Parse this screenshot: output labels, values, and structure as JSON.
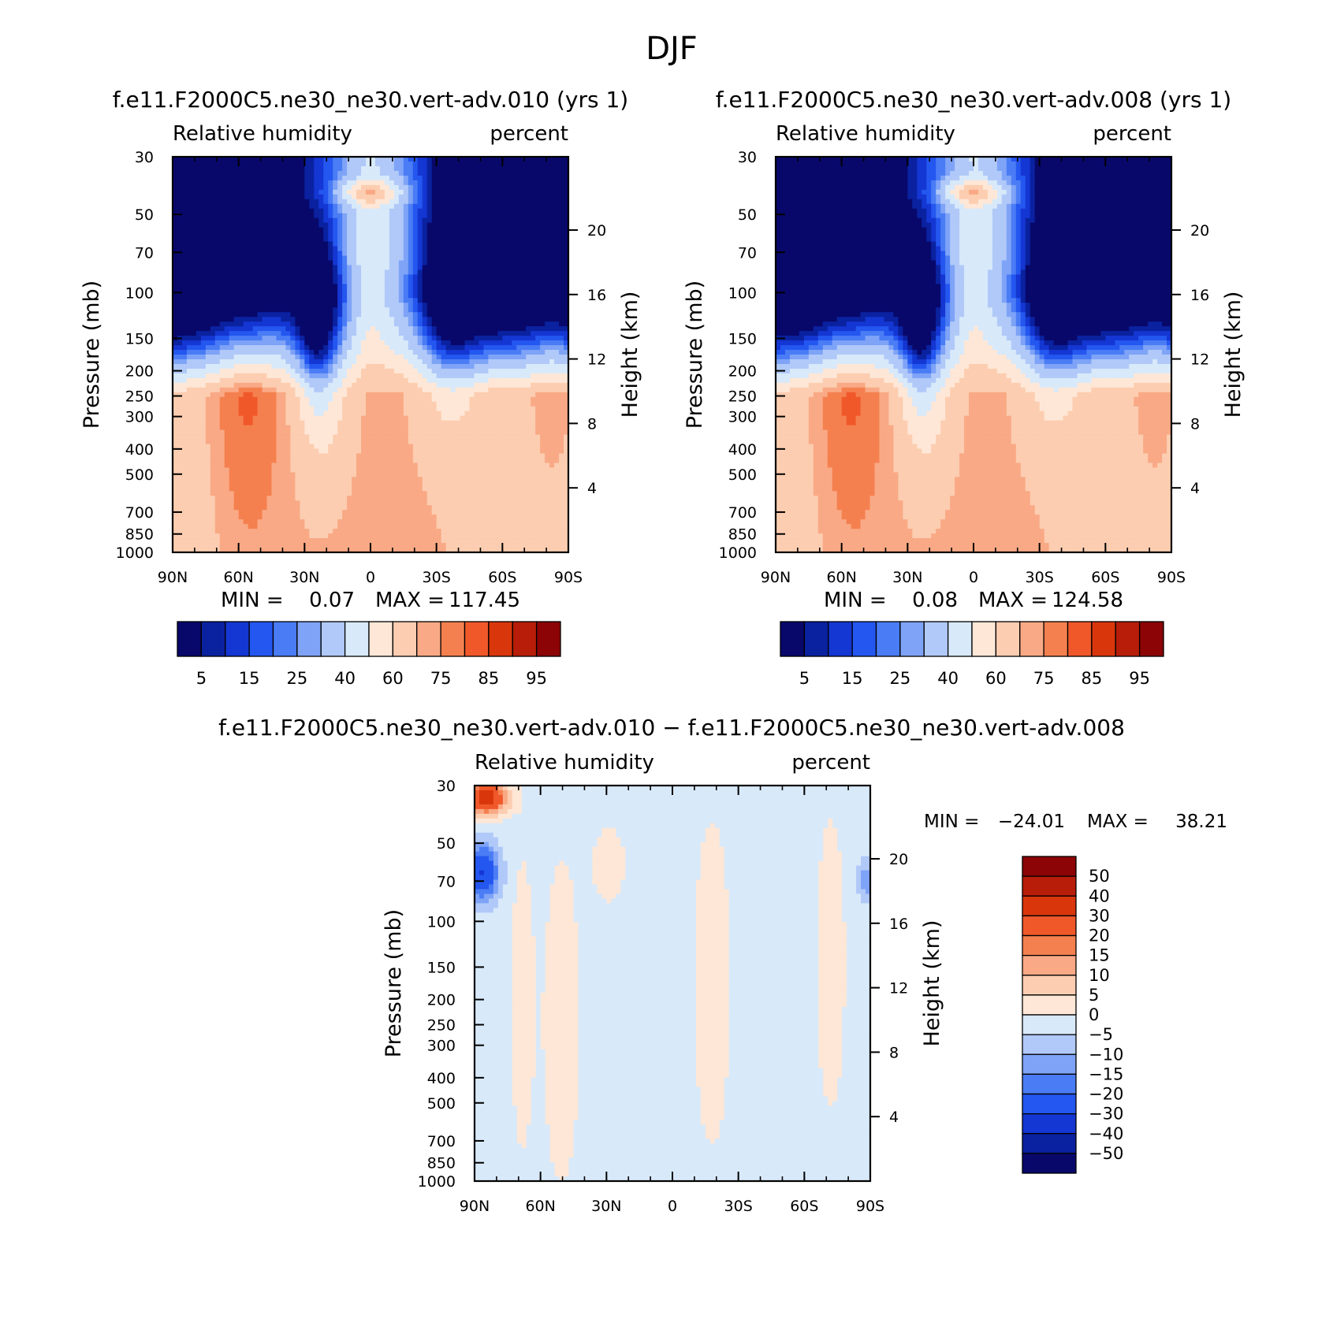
{
  "chart_data": {
    "type": "heatmap",
    "title": "DJF",
    "panels": [
      {
        "id": "case",
        "run_title": "f.e11.F2000C5.ne30_ne30.vert-adv.010 (yrs 1)",
        "left_label": "Relative humidity",
        "right_label": "percent",
        "xlabel": "",
        "ylabel": "Pressure (mb)",
        "ylabel_right": "Height (km)",
        "x_ticks": [
          "90N",
          "60N",
          "30N",
          "0",
          "30S",
          "60S",
          "90S"
        ],
        "y_ticks": [
          "30",
          "50",
          "70",
          "100",
          "150",
          "200",
          "250",
          "300",
          "400",
          "500",
          "700",
          "850",
          "1000"
        ],
        "height_ticks": [
          "20",
          "16",
          "12",
          "8",
          "4"
        ],
        "stats": {
          "min_label": "MIN =",
          "min_value": "0.07",
          "max_label": "MAX =",
          "max_value": "117.45"
        },
        "colorbar": {
          "orientation": "horizontal",
          "labels": [
            "5",
            "15",
            "25",
            "40",
            "60",
            "75",
            "85",
            "95"
          ]
        }
      },
      {
        "id": "control",
        "run_title": "f.e11.F2000C5.ne30_ne30.vert-adv.008 (yrs 1)",
        "left_label": "Relative humidity",
        "right_label": "percent",
        "xlabel": "",
        "ylabel": "Pressure (mb)",
        "ylabel_right": "Height (km)",
        "x_ticks": [
          "90N",
          "60N",
          "30N",
          "0",
          "30S",
          "60S",
          "90S"
        ],
        "y_ticks": [
          "30",
          "50",
          "70",
          "100",
          "150",
          "200",
          "250",
          "300",
          "400",
          "500",
          "700",
          "850",
          "1000"
        ],
        "height_ticks": [
          "20",
          "16",
          "12",
          "8",
          "4"
        ],
        "stats": {
          "min_label": "MIN =",
          "min_value": "0.08",
          "max_label": "MAX =",
          "max_value": "124.58"
        },
        "colorbar": {
          "orientation": "horizontal",
          "labels": [
            "5",
            "15",
            "25",
            "40",
            "60",
            "75",
            "85",
            "95"
          ]
        }
      },
      {
        "id": "difference",
        "run_title": "f.e11.F2000C5.ne30_ne30.vert-adv.010 − f.e11.F2000C5.ne30_ne30.vert-adv.008",
        "left_label": "Relative humidity",
        "right_label": "percent",
        "xlabel": "",
        "ylabel": "Pressure (mb)",
        "ylabel_right": "Height (km)",
        "x_ticks": [
          "90N",
          "60N",
          "30N",
          "0",
          "30S",
          "60S",
          "90S"
        ],
        "y_ticks": [
          "30",
          "50",
          "70",
          "100",
          "150",
          "200",
          "250",
          "300",
          "400",
          "500",
          "700",
          "850",
          "1000"
        ],
        "height_ticks": [
          "20",
          "16",
          "12",
          "8",
          "4"
        ],
        "stats": {
          "min_label": "MIN =",
          "min_value": "−24.01",
          "max_label": "MAX =",
          "max_value": "38.21"
        },
        "colorbar": {
          "orientation": "vertical",
          "labels": [
            "50",
            "40",
            "30",
            "20",
            "15",
            "10",
            "5",
            "0",
            "−5",
            "−10",
            "−15",
            "−20",
            "−30",
            "−40",
            "−50"
          ]
        }
      }
    ],
    "x_axis": {
      "range": [
        90,
        -90
      ],
      "ticks_deg": [
        90,
        60,
        30,
        0,
        -30,
        -60,
        -90
      ],
      "minor_step_deg": 10
    },
    "y_axis": {
      "scale": "log",
      "range_mb": [
        1000,
        30
      ],
      "ticks_mb": [
        30,
        50,
        70,
        100,
        150,
        200,
        250,
        300,
        400,
        500,
        700,
        850,
        1000
      ]
    },
    "height_axis_km": [
      20,
      16,
      12,
      8,
      4
    ],
    "palettes": {
      "abs": [
        "#08086b",
        "#0a22a0",
        "#1436d2",
        "#2456f0",
        "#4a7cf5",
        "#7ea3f7",
        "#b0c9f8",
        "#d8e9fa",
        "#fee7d6",
        "#fccdb0",
        "#f9a985",
        "#f5804f",
        "#f0582a",
        "#d9360c",
        "#b71d08",
        "#8c0405"
      ],
      "diff": [
        "#08086b",
        "#0a22a0",
        "#1436d2",
        "#2456f0",
        "#4a7cf5",
        "#7ea3f7",
        "#b0c9f8",
        "#d8e9fa",
        "#fee7d6",
        "#fccdb0",
        "#f9a985",
        "#f5804f",
        "#f0582a",
        "#d9360c",
        "#b71d08",
        "#8c0405"
      ]
    }
  }
}
